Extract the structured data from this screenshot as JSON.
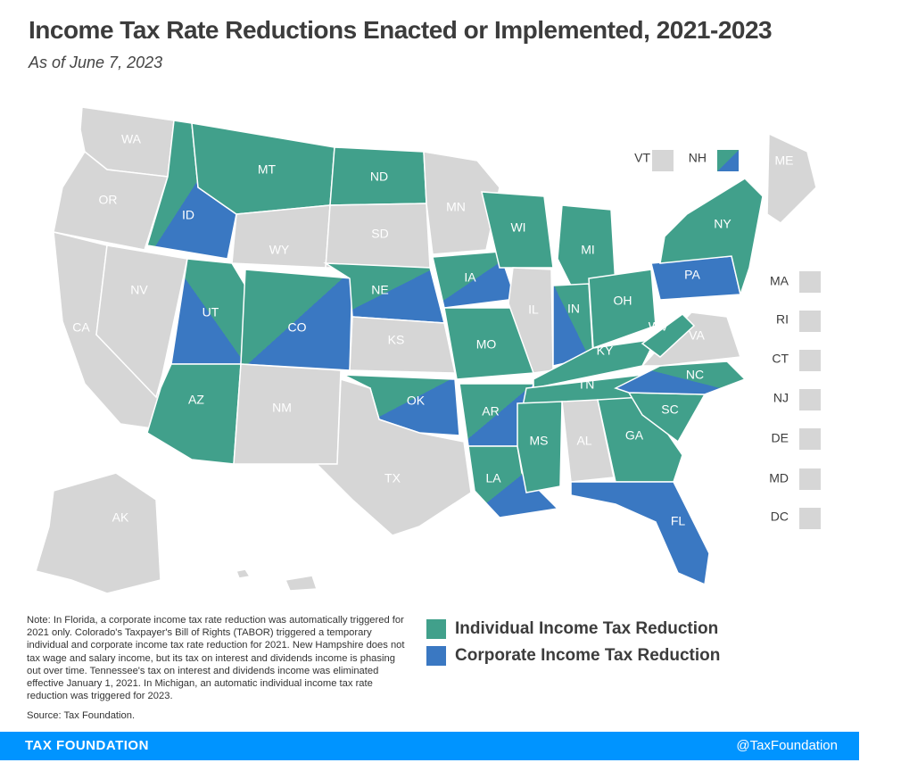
{
  "title": "Income Tax Rate Reductions Enacted or Implemented, 2021-2023",
  "subtitle": "As of June 7, 2023",
  "colors": {
    "individual": "#41a08b",
    "corporate": "#3a78c2",
    "none": "#d6d6d6"
  },
  "legend": {
    "individual": "Individual Income Tax Reduction",
    "corporate": "Corporate Income Tax Reduction"
  },
  "states": [
    {
      "abbr": "WA",
      "type": "none"
    },
    {
      "abbr": "OR",
      "type": "none"
    },
    {
      "abbr": "CA",
      "type": "none"
    },
    {
      "abbr": "NV",
      "type": "none"
    },
    {
      "abbr": "ID",
      "type": "both"
    },
    {
      "abbr": "MT",
      "type": "individual"
    },
    {
      "abbr": "WY",
      "type": "none"
    },
    {
      "abbr": "UT",
      "type": "both"
    },
    {
      "abbr": "AZ",
      "type": "individual"
    },
    {
      "abbr": "CO",
      "type": "both"
    },
    {
      "abbr": "NM",
      "type": "none"
    },
    {
      "abbr": "ND",
      "type": "individual"
    },
    {
      "abbr": "SD",
      "type": "none"
    },
    {
      "abbr": "NE",
      "type": "both"
    },
    {
      "abbr": "KS",
      "type": "none"
    },
    {
      "abbr": "OK",
      "type": "both"
    },
    {
      "abbr": "TX",
      "type": "none"
    },
    {
      "abbr": "MN",
      "type": "none"
    },
    {
      "abbr": "IA",
      "type": "both"
    },
    {
      "abbr": "MO",
      "type": "individual"
    },
    {
      "abbr": "AR",
      "type": "both"
    },
    {
      "abbr": "LA",
      "type": "both"
    },
    {
      "abbr": "WI",
      "type": "individual"
    },
    {
      "abbr": "IL",
      "type": "none"
    },
    {
      "abbr": "MI",
      "type": "individual"
    },
    {
      "abbr": "IN",
      "type": "both"
    },
    {
      "abbr": "OH",
      "type": "individual"
    },
    {
      "abbr": "KY",
      "type": "individual"
    },
    {
      "abbr": "TN",
      "type": "individual"
    },
    {
      "abbr": "MS",
      "type": "individual"
    },
    {
      "abbr": "AL",
      "type": "none"
    },
    {
      "abbr": "GA",
      "type": "individual"
    },
    {
      "abbr": "FL",
      "type": "corporate"
    },
    {
      "abbr": "SC",
      "type": "individual"
    },
    {
      "abbr": "NC",
      "type": "both"
    },
    {
      "abbr": "VA",
      "type": "none"
    },
    {
      "abbr": "WV",
      "type": "individual"
    },
    {
      "abbr": "PA",
      "type": "corporate"
    },
    {
      "abbr": "NY",
      "type": "individual"
    },
    {
      "abbr": "ME",
      "type": "none"
    },
    {
      "abbr": "AK",
      "type": "none"
    },
    {
      "abbr": "HI",
      "type": "none"
    }
  ],
  "small_states": [
    {
      "abbr": "VT",
      "type": "none"
    },
    {
      "abbr": "NH",
      "type": "both"
    },
    {
      "abbr": "MA",
      "type": "none"
    },
    {
      "abbr": "RI",
      "type": "none"
    },
    {
      "abbr": "CT",
      "type": "none"
    },
    {
      "abbr": "NJ",
      "type": "none"
    },
    {
      "abbr": "DE",
      "type": "none"
    },
    {
      "abbr": "MD",
      "type": "none"
    },
    {
      "abbr": "DC",
      "type": "none"
    }
  ],
  "note": "Note: In Florida, a corporate income tax rate reduction was automatically triggered for 2021 only. Colorado's Taxpayer's Bill of Rights (TABOR) triggered a temporary individual and corporate income tax rate reduction for 2021. New Hampshire does not tax wage and salary income, but its tax on interest and dividends income is phasing out over time. Tennessee's tax on interest and dividends income was eliminated effective January 1, 2021. In Michigan, an automatic individual income tax rate reduction was triggered for 2023.",
  "source": "Source: Tax Foundation.",
  "footer": {
    "left": "TAX FOUNDATION",
    "right": "@TaxFoundation"
  }
}
